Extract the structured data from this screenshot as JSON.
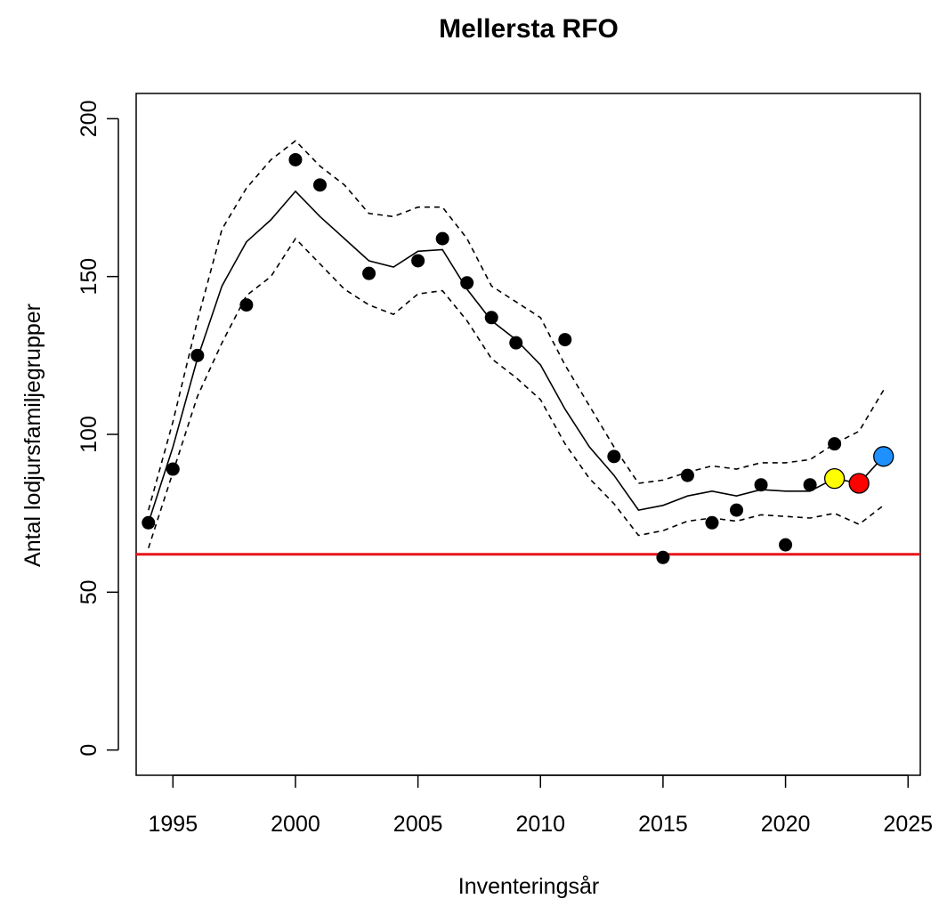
{
  "chart_data": {
    "type": "line",
    "title": "Mellersta RFO",
    "xlabel": "Inventeringsår",
    "ylabel": "Antal lodjursfamiljegrupper",
    "xlim": [
      1993.5,
      2025.5
    ],
    "ylim": [
      -8,
      208
    ],
    "x_ticks": [
      1995,
      2000,
      2005,
      2010,
      2015,
      2020,
      2025
    ],
    "x_tick_labels": [
      "1995",
      "2000",
      "2005",
      "2010",
      "2015",
      "2020",
      "2025"
    ],
    "y_ticks": [
      0,
      50,
      100,
      150,
      200
    ],
    "y_tick_labels": [
      "0",
      "50",
      "100",
      "150",
      "200"
    ],
    "grid": false,
    "reference_line": {
      "y": 62,
      "color": "#e8141c"
    },
    "series": [
      {
        "style": "line-solid",
        "color": "#000000",
        "x": [
          1994,
          1995,
          1996,
          1997,
          1998,
          1999,
          2000,
          2001,
          2002,
          2003,
          2004,
          2005,
          2006,
          2007,
          2008,
          2009,
          2010,
          2011,
          2012,
          2013,
          2014,
          2015,
          2016,
          2017,
          2018,
          2019,
          2020,
          2021,
          2022,
          2023,
          2024
        ],
        "values": [
          72,
          96,
          124,
          147,
          161,
          168,
          177,
          169,
          162,
          155,
          153,
          158,
          158.5,
          146,
          136,
          130,
          122,
          108,
          96,
          87,
          76,
          77.5,
          80.5,
          82,
          80.5,
          82.5,
          82,
          82,
          86,
          84.5,
          93
        ]
      },
      {
        "style": "line-dashed",
        "color": "#000000",
        "x": [
          1994,
          1995,
          1996,
          1997,
          1998,
          1999,
          2000,
          2001,
          2002,
          2003,
          2004,
          2005,
          2006,
          2007,
          2008,
          2009,
          2010,
          2011,
          2012,
          2013,
          2014,
          2015,
          2016,
          2017,
          2018,
          2019,
          2020,
          2021,
          2022,
          2023,
          2024
        ],
        "values": [
          76,
          104,
          136,
          165,
          178,
          187,
          193,
          185,
          179,
          170,
          169,
          172,
          172,
          162,
          147,
          142,
          137,
          122,
          109,
          96,
          84.5,
          85.5,
          88,
          90,
          89,
          91,
          91,
          92,
          97,
          101,
          114
        ]
      },
      {
        "style": "line-dashed",
        "color": "#000000",
        "x": [
          1994,
          1995,
          1996,
          1997,
          1998,
          1999,
          2000,
          2001,
          2002,
          2003,
          2004,
          2005,
          2006,
          2007,
          2008,
          2009,
          2010,
          2011,
          2012,
          2013,
          2014,
          2015,
          2016,
          2017,
          2018,
          2019,
          2020,
          2021,
          2022,
          2023,
          2024
        ],
        "values": [
          64,
          88,
          112,
          129,
          144,
          150,
          162,
          154,
          146,
          141,
          138,
          144.5,
          145.5,
          136,
          124,
          118,
          111,
          97,
          86,
          78,
          68,
          69.5,
          72.5,
          73.5,
          72.5,
          74.5,
          74,
          73.5,
          75,
          71.5,
          77.5
        ]
      },
      {
        "style": "points",
        "color": "#000000",
        "x": [
          1994,
          1995,
          1996,
          1998,
          2000,
          2001,
          2003,
          2005,
          2006,
          2007,
          2008,
          2009,
          2011,
          2013,
          2015,
          2016,
          2017,
          2018,
          2019,
          2020,
          2021,
          2022
        ],
        "values": [
          72,
          89,
          125,
          141,
          187,
          179,
          151,
          155,
          162,
          148,
          137,
          129,
          130,
          93,
          61,
          87,
          72,
          76,
          84,
          65,
          84,
          97
        ]
      }
    ],
    "highlight_points": [
      {
        "x": 2022,
        "value": 86,
        "color": "#ffff00"
      },
      {
        "x": 2023,
        "value": 84.5,
        "color": "#ff0000"
      },
      {
        "x": 2024,
        "value": 93,
        "color": "#1e90ff"
      }
    ]
  }
}
